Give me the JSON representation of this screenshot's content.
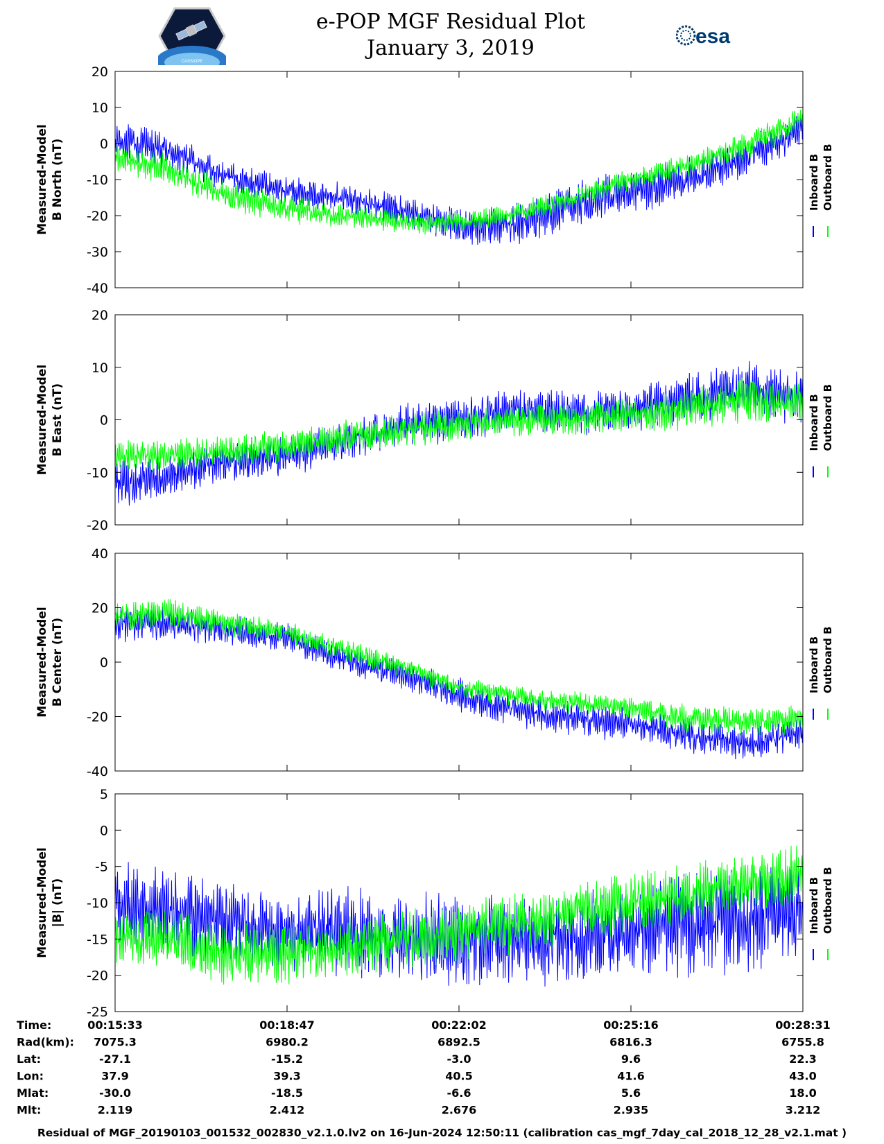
{
  "header": {
    "title_line1": "e-POP MGF Residual Plot",
    "title_line2": "January 3, 2019",
    "logo_left_text": "CASSIOPE",
    "logo_right_text": "esa"
  },
  "colors": {
    "inboard": "#0000ff",
    "outboard": "#00ff00"
  },
  "legend": {
    "inboard_label": "Inboard B",
    "outboard_label": "Outboard B"
  },
  "chart_data": [
    {
      "type": "line",
      "ylabel_line1": "Measured-Model",
      "ylabel_line2": "B North (nT)",
      "ylim": [
        -40,
        20
      ],
      "yticks": [
        20,
        10,
        0,
        -10,
        -20,
        -30,
        -40
      ],
      "x_seconds": [
        0,
        60,
        120,
        194,
        260,
        330,
        389,
        460,
        520,
        584,
        650,
        720,
        778
      ],
      "series": [
        {
          "name": "Inboard B",
          "center": [
            1,
            -2,
            -9,
            -13,
            -15,
            -19,
            -23,
            -22,
            -17,
            -13,
            -10,
            -3,
            4
          ],
          "amplitude": [
            5,
            5,
            4,
            4,
            4,
            4,
            5,
            6,
            6,
            6,
            6,
            5,
            5
          ]
        },
        {
          "name": "Outboard B",
          "center": [
            -4,
            -7,
            -14,
            -18,
            -20,
            -22,
            -22,
            -19,
            -15,
            -10,
            -6,
            0,
            7
          ],
          "amplitude": [
            4,
            4,
            4,
            4,
            3,
            3,
            3,
            3,
            3,
            3,
            3,
            4,
            4
          ]
        }
      ]
    },
    {
      "type": "line",
      "ylabel_line1": "Measured-Model",
      "ylabel_line2": "B East (nT)",
      "ylim": [
        -20,
        20
      ],
      "yticks": [
        20,
        10,
        0,
        -10,
        -20
      ],
      "x_seconds": [
        0,
        60,
        120,
        194,
        260,
        330,
        389,
        460,
        520,
        584,
        650,
        720,
        778
      ],
      "series": [
        {
          "name": "Inboard B",
          "center": [
            -12,
            -11,
            -8,
            -7,
            -4,
            -1,
            0,
            2,
            1,
            2,
            4,
            6,
            4
          ],
          "amplitude": [
            5,
            4,
            4,
            4,
            4,
            4,
            4,
            4,
            4,
            4,
            5,
            5,
            5
          ]
        },
        {
          "name": "Outboard B",
          "center": [
            -7,
            -7,
            -6,
            -5,
            -3,
            -2,
            -1,
            0,
            0,
            1,
            2,
            4,
            3
          ],
          "amplitude": [
            3,
            3,
            3,
            3,
            3,
            3,
            3,
            3,
            3,
            3,
            4,
            4,
            4
          ]
        }
      ]
    },
    {
      "type": "line",
      "ylabel_line1": "Measured-Model",
      "ylabel_line2": "B Center (nT)",
      "ylim": [
        -40,
        40
      ],
      "yticks": [
        40,
        20,
        0,
        -20,
        -40
      ],
      "x_seconds": [
        0,
        60,
        120,
        194,
        260,
        330,
        389,
        460,
        520,
        584,
        650,
        720,
        778
      ],
      "series": [
        {
          "name": "Inboard B",
          "center": [
            14,
            14,
            12,
            9,
            1,
            -5,
            -12,
            -18,
            -21,
            -23,
            -27,
            -30,
            -26
          ],
          "amplitude": [
            7,
            6,
            6,
            5,
            5,
            5,
            6,
            6,
            6,
            6,
            6,
            6,
            6
          ]
        },
        {
          "name": "Outboard B",
          "center": [
            17,
            18,
            15,
            11,
            4,
            -2,
            -9,
            -13,
            -15,
            -17,
            -21,
            -22,
            -21
          ],
          "amplitude": [
            5,
            5,
            5,
            4,
            4,
            4,
            4,
            4,
            4,
            4,
            5,
            5,
            5
          ]
        }
      ]
    },
    {
      "type": "line",
      "ylabel_line1": "Measured-Model",
      "ylabel_line2": "|B| (nT)",
      "ylim": [
        -25,
        5
      ],
      "yticks": [
        5,
        0,
        -5,
        -10,
        -15,
        -20,
        -25
      ],
      "x_seconds": [
        0,
        60,
        120,
        194,
        260,
        330,
        389,
        460,
        520,
        584,
        650,
        720,
        778
      ],
      "series": [
        {
          "name": "Inboard B",
          "center": [
            -10,
            -11,
            -13,
            -14,
            -14,
            -15,
            -15,
            -15,
            -15,
            -14,
            -13,
            -12,
            -11
          ],
          "amplitude": [
            6,
            6,
            6,
            5,
            6,
            6,
            6,
            6,
            6,
            6,
            7,
            7,
            6
          ]
        },
        {
          "name": "Outboard B",
          "center": [
            -15,
            -15,
            -17,
            -17,
            -16,
            -15,
            -14,
            -13,
            -11,
            -10,
            -9,
            -7,
            -6
          ],
          "amplitude": [
            4,
            4,
            4,
            4,
            4,
            4,
            4,
            4,
            4,
            4,
            4,
            4,
            4
          ]
        }
      ]
    }
  ],
  "ephemeris": {
    "row_labels": [
      "Time:",
      "Rad(km):",
      "Lat:",
      "Lon:",
      "Mlat:",
      "Mlt:"
    ],
    "columns": [
      [
        "00:15:33",
        "7075.3",
        "-27.1",
        "37.9",
        "-30.0",
        "2.119"
      ],
      [
        "00:18:47",
        "6980.2",
        "-15.2",
        "39.3",
        "-18.5",
        "2.412"
      ],
      [
        "00:22:02",
        "6892.5",
        "-3.0",
        "40.5",
        "-6.6",
        "2.676"
      ],
      [
        "00:25:16",
        "6816.3",
        "9.6",
        "41.6",
        "5.6",
        "2.935"
      ],
      [
        "00:28:31",
        "6755.8",
        "22.3",
        "43.0",
        "18.0",
        "3.212"
      ]
    ]
  },
  "footer": "Residual of MGF_20190103_001532_002830_v2.1.0.lv2 on 16-Jun-2024 12:50:11 (calibration cas_mgf_7day_cal_2018_12_28_v2.1.mat )"
}
